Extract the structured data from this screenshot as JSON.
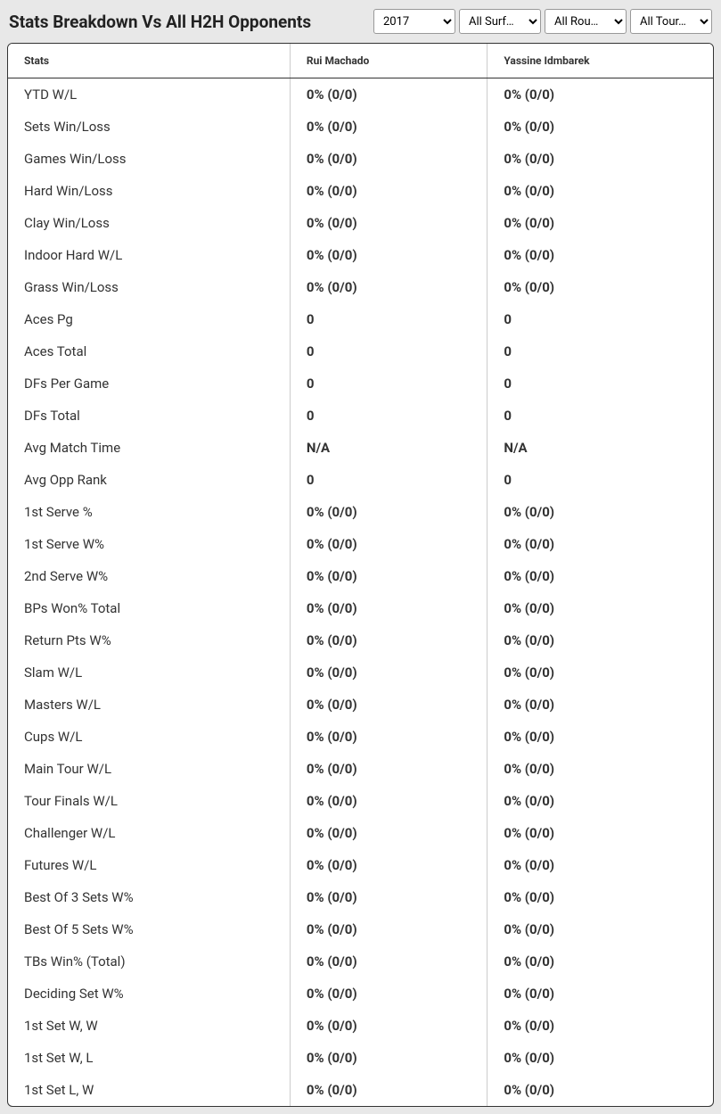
{
  "header": {
    "title": "Stats Breakdown Vs All H2H Opponents"
  },
  "filters": {
    "year": {
      "selected": "2017",
      "options": [
        "2017"
      ]
    },
    "surface": {
      "selected": "All Surf…",
      "options": [
        "All Surf…"
      ]
    },
    "round": {
      "selected": "All Rou…",
      "options": [
        "All Rou…"
      ]
    },
    "tour": {
      "selected": "All Tour…",
      "options": [
        "All Tour…"
      ]
    }
  },
  "table": {
    "columns": [
      "Stats",
      "Rui Machado",
      "Yassine Idmbarek"
    ],
    "rows": [
      {
        "stat": "YTD W/L",
        "p1": "0% (0/0)",
        "p2": "0% (0/0)"
      },
      {
        "stat": "Sets Win/Loss",
        "p1": "0% (0/0)",
        "p2": "0% (0/0)"
      },
      {
        "stat": "Games Win/Loss",
        "p1": "0% (0/0)",
        "p2": "0% (0/0)"
      },
      {
        "stat": "Hard Win/Loss",
        "p1": "0% (0/0)",
        "p2": "0% (0/0)"
      },
      {
        "stat": "Clay Win/Loss",
        "p1": "0% (0/0)",
        "p2": "0% (0/0)"
      },
      {
        "stat": "Indoor Hard W/L",
        "p1": "0% (0/0)",
        "p2": "0% (0/0)"
      },
      {
        "stat": "Grass Win/Loss",
        "p1": "0% (0/0)",
        "p2": "0% (0/0)"
      },
      {
        "stat": "Aces Pg",
        "p1": "0",
        "p2": "0"
      },
      {
        "stat": "Aces Total",
        "p1": "0",
        "p2": "0"
      },
      {
        "stat": "DFs Per Game",
        "p1": "0",
        "p2": "0"
      },
      {
        "stat": "DFs Total",
        "p1": "0",
        "p2": "0"
      },
      {
        "stat": "Avg Match Time",
        "p1": "N/A",
        "p2": "N/A"
      },
      {
        "stat": "Avg Opp Rank",
        "p1": "0",
        "p2": "0"
      },
      {
        "stat": "1st Serve %",
        "p1": "0% (0/0)",
        "p2": "0% (0/0)"
      },
      {
        "stat": "1st Serve W%",
        "p1": "0% (0/0)",
        "p2": "0% (0/0)"
      },
      {
        "stat": "2nd Serve W%",
        "p1": "0% (0/0)",
        "p2": "0% (0/0)"
      },
      {
        "stat": "BPs Won% Total",
        "p1": "0% (0/0)",
        "p2": "0% (0/0)"
      },
      {
        "stat": "Return Pts W%",
        "p1": "0% (0/0)",
        "p2": "0% (0/0)"
      },
      {
        "stat": "Slam W/L",
        "p1": "0% (0/0)",
        "p2": "0% (0/0)"
      },
      {
        "stat": "Masters W/L",
        "p1": "0% (0/0)",
        "p2": "0% (0/0)"
      },
      {
        "stat": "Cups W/L",
        "p1": "0% (0/0)",
        "p2": "0% (0/0)"
      },
      {
        "stat": "Main Tour W/L",
        "p1": "0% (0/0)",
        "p2": "0% (0/0)"
      },
      {
        "stat": "Tour Finals W/L",
        "p1": "0% (0/0)",
        "p2": "0% (0/0)"
      },
      {
        "stat": "Challenger W/L",
        "p1": "0% (0/0)",
        "p2": "0% (0/0)"
      },
      {
        "stat": "Futures W/L",
        "p1": "0% (0/0)",
        "p2": "0% (0/0)"
      },
      {
        "stat": "Best Of 3 Sets W%",
        "p1": "0% (0/0)",
        "p2": "0% (0/0)"
      },
      {
        "stat": "Best Of 5 Sets W%",
        "p1": "0% (0/0)",
        "p2": "0% (0/0)"
      },
      {
        "stat": "TBs Win% (Total)",
        "p1": "0% (0/0)",
        "p2": "0% (0/0)"
      },
      {
        "stat": "Deciding Set W%",
        "p1": "0% (0/0)",
        "p2": "0% (0/0)"
      },
      {
        "stat": "1st Set W, W",
        "p1": "0% (0/0)",
        "p2": "0% (0/0)"
      },
      {
        "stat": "1st Set W, L",
        "p1": "0% (0/0)",
        "p2": "0% (0/0)"
      },
      {
        "stat": "1st Set L, W",
        "p1": "0% (0/0)",
        "p2": "0% (0/0)"
      }
    ]
  }
}
